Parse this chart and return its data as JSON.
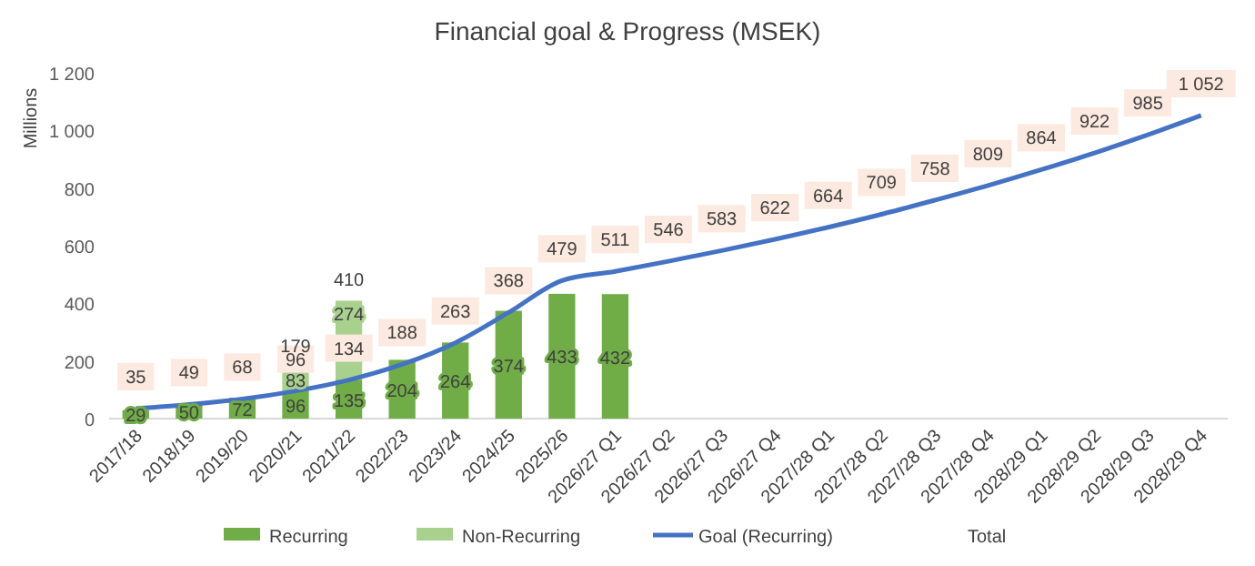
{
  "chart_data": {
    "type": "bar",
    "title": "Financial goal & Progress (MSEK)",
    "ylabel": "Millions",
    "categories": [
      "2017/18",
      "2018/19",
      "2019/20",
      "2020/21",
      "2021/22",
      "2022/23",
      "2023/24",
      "2024/25",
      "2025/26",
      "2026/27 Q1",
      "2026/27 Q2",
      "2026/27 Q3",
      "2026/27 Q4",
      "2027/28 Q1",
      "2027/28 Q2",
      "2027/28 Q3",
      "2027/28 Q4",
      "2028/29 Q1",
      "2028/29 Q2",
      "2028/29 Q3",
      "2028/29 Q4"
    ],
    "stacked": true,
    "series": [
      {
        "name": "Recurring",
        "color": "#70ad47",
        "values": [
          29,
          50,
          72,
          96,
          135,
          204,
          264,
          374,
          433,
          432,
          null,
          null,
          null,
          null,
          null,
          null,
          null,
          null,
          null,
          null,
          null
        ]
      },
      {
        "name": "Non-Recurring",
        "color": "#a9d18e",
        "values": [
          null,
          null,
          null,
          83,
          274,
          null,
          null,
          null,
          null,
          null,
          null,
          null,
          null,
          null,
          null,
          null,
          null,
          null,
          null,
          null,
          null
        ]
      },
      {
        "name": "Goal (Recurring)",
        "type": "line",
        "color": "#4472c4",
        "values": [
          35,
          49,
          68,
          96,
          134,
          188,
          263,
          368,
          479,
          511,
          546,
          583,
          622,
          664,
          709,
          758,
          809,
          864,
          922,
          985,
          1052
        ]
      }
    ],
    "totals": [
      null,
      null,
      null,
      "179",
      "410",
      null,
      null,
      null,
      null,
      null,
      null,
      null,
      null,
      null,
      null,
      null,
      null,
      null,
      null,
      null,
      null
    ],
    "annotations": [
      "Total"
    ],
    "ylim": [
      0,
      1200
    ],
    "yticks": [
      0,
      200,
      400,
      600,
      800,
      {
        "value": 1000,
        "label": "1 000"
      },
      {
        "value": 1200,
        "label": "1 200"
      }
    ],
    "grid": false,
    "legend": "bottom",
    "data_labels": true,
    "marker": "none",
    "line_style": "solid"
  }
}
